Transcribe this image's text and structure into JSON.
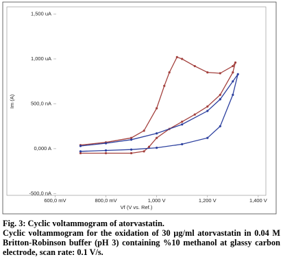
{
  "chart_data": {
    "type": "line",
    "x_label": "Vf (V vs. Ref.)",
    "y_label": "Im (A)",
    "xlim": [
      0.41,
      1.43
    ],
    "ylim": [
      -0.52,
      1.58
    ],
    "xticks": [
      {
        "value": 0.6,
        "label": "600,0 mV"
      },
      {
        "value": 0.8,
        "label": "800,0 mV"
      },
      {
        "value": 1.0,
        "label": "1,000 V"
      },
      {
        "value": 1.2,
        "label": "1,200 V"
      },
      {
        "value": 1.4,
        "label": "1,400 V"
      }
    ],
    "yticks": [
      {
        "value": -0.5,
        "label": "-500,0 nA"
      },
      {
        "value": 0,
        "label": "0,000 A"
      },
      {
        "value": 0.5,
        "label": "500,0 nA"
      },
      {
        "value": 1.0,
        "label": "1,000 uA"
      },
      {
        "value": 1.5,
        "label": "1,500 uA"
      }
    ],
    "grid": false,
    "series": [
      {
        "color": "#a3403d",
        "x": [
          0.7,
          0.8,
          0.9,
          0.95,
          1.0,
          1.03,
          1.05,
          1.08,
          1.1,
          1.15,
          1.2,
          1.25,
          1.3,
          1.31,
          1.3,
          1.25,
          1.2,
          1.15,
          1.1,
          1.05,
          1.0,
          0.97,
          0.95,
          0.9,
          0.8,
          0.7
        ],
        "values": [
          0.04,
          0.07,
          0.12,
          0.2,
          0.45,
          0.7,
          0.85,
          1.02,
          1.0,
          0.92,
          0.85,
          0.84,
          0.92,
          0.96,
          0.85,
          0.6,
          0.47,
          0.38,
          0.3,
          0.22,
          0.12,
          0.02,
          -0.03,
          -0.05,
          -0.05,
          -0.05
        ]
      },
      {
        "color": "#2b3f9e",
        "x": [
          0.7,
          0.8,
          0.9,
          1.0,
          1.1,
          1.2,
          1.25,
          1.3,
          1.32,
          1.3,
          1.25,
          1.2,
          1.1,
          1.0,
          0.9,
          0.8,
          0.7
        ],
        "values": [
          0.03,
          0.06,
          0.1,
          0.17,
          0.27,
          0.42,
          0.55,
          0.75,
          0.83,
          0.6,
          0.25,
          0.12,
          0.05,
          0.01,
          -0.01,
          -0.02,
          -0.03
        ]
      }
    ],
    "caption_title": "Fig. 3: Cyclic voltammogram of atorvastatin.",
    "caption_text": "Cyclic voltammogram for the oxidation of 30 µg/ml atorvastatin in 0.04 M Britton-Robinson buffer (pH 3) containing %10 methanol at glassy carbon electrode, scan rate: 0.1 V/s."
  }
}
